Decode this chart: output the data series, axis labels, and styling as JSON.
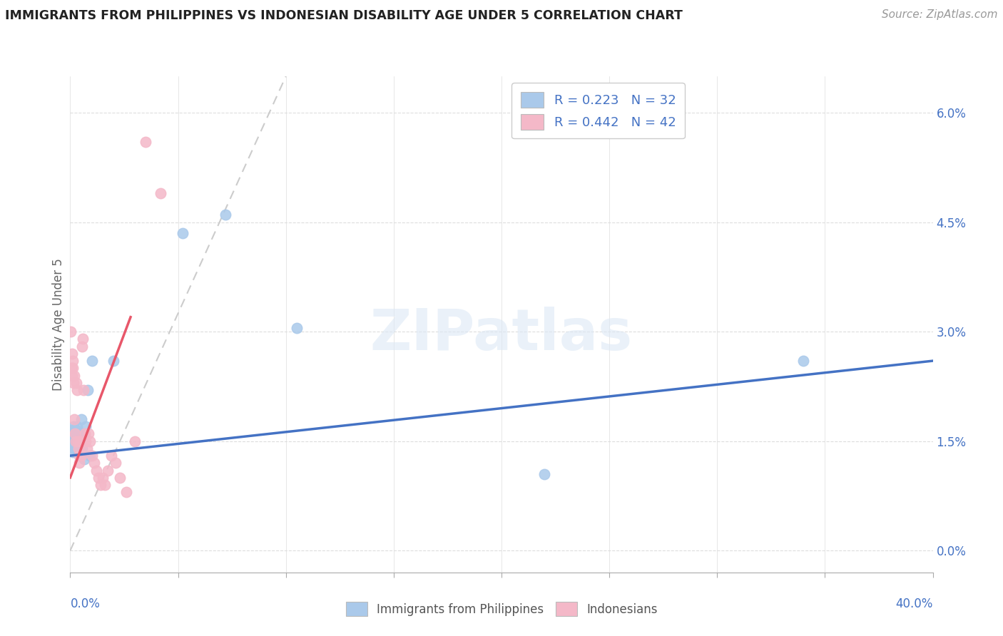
{
  "title": "IMMIGRANTS FROM PHILIPPINES VS INDONESIAN DISABILITY AGE UNDER 5 CORRELATION CHART",
  "source": "Source: ZipAtlas.com",
  "ylabel": "Disability Age Under 5",
  "ytick_vals": [
    0.0,
    1.5,
    3.0,
    4.5,
    6.0
  ],
  "xlim": [
    0.0,
    40.0
  ],
  "ylim": [
    -0.3,
    6.5
  ],
  "legend_R1": "0.223",
  "legend_N1": "32",
  "legend_R2": "0.442",
  "legend_N2": "42",
  "blue_color": "#aac9ea",
  "pink_color": "#f4b8c8",
  "trendline_blue": "#4472c4",
  "trendline_pink": "#e8576a",
  "diagonal_color": "#cccccc",
  "background_color": "#ffffff",
  "watermark": "ZIPatlas",
  "phil_x": [
    0.05,
    0.07,
    0.09,
    0.11,
    0.13,
    0.15,
    0.17,
    0.19,
    0.21,
    0.23,
    0.25,
    0.27,
    0.3,
    0.33,
    0.36,
    0.4,
    0.43,
    0.47,
    0.5,
    0.55,
    0.6,
    0.65,
    0.7,
    0.8,
    0.9,
    1.0,
    2.0,
    5.2,
    7.2,
    10.5,
    22.0,
    34.0
  ],
  "phil_y": [
    1.55,
    1.45,
    1.65,
    1.35,
    1.6,
    1.7,
    1.5,
    1.4,
    1.55,
    1.45,
    1.65,
    1.35,
    1.55,
    1.7,
    1.45,
    1.6,
    1.35,
    1.55,
    1.8,
    1.4,
    1.6,
    1.25,
    1.7,
    2.2,
    1.3,
    2.6,
    2.6,
    4.35,
    4.6,
    3.05,
    1.05,
    2.6
  ],
  "indo_x": [
    0.02,
    0.05,
    0.07,
    0.09,
    0.11,
    0.13,
    0.15,
    0.17,
    0.19,
    0.22,
    0.25,
    0.28,
    0.31,
    0.34,
    0.37,
    0.4,
    0.43,
    0.46,
    0.5,
    0.54,
    0.58,
    0.62,
    0.67,
    0.72,
    0.78,
    0.85,
    0.92,
    1.0,
    1.1,
    1.2,
    1.3,
    1.4,
    1.5,
    1.6,
    1.75,
    1.9,
    2.1,
    2.3,
    2.6,
    3.0,
    3.5,
    4.2
  ],
  "indo_y": [
    3.0,
    2.5,
    2.4,
    2.7,
    2.6,
    2.5,
    2.3,
    2.4,
    1.8,
    1.6,
    1.5,
    2.3,
    2.2,
    1.5,
    1.4,
    1.3,
    1.2,
    1.5,
    1.3,
    2.8,
    2.9,
    2.2,
    1.6,
    1.5,
    1.4,
    1.6,
    1.5,
    1.3,
    1.2,
    1.1,
    1.0,
    0.9,
    1.0,
    0.9,
    1.1,
    1.3,
    1.2,
    1.0,
    0.8,
    1.5,
    5.6,
    4.9
  ]
}
